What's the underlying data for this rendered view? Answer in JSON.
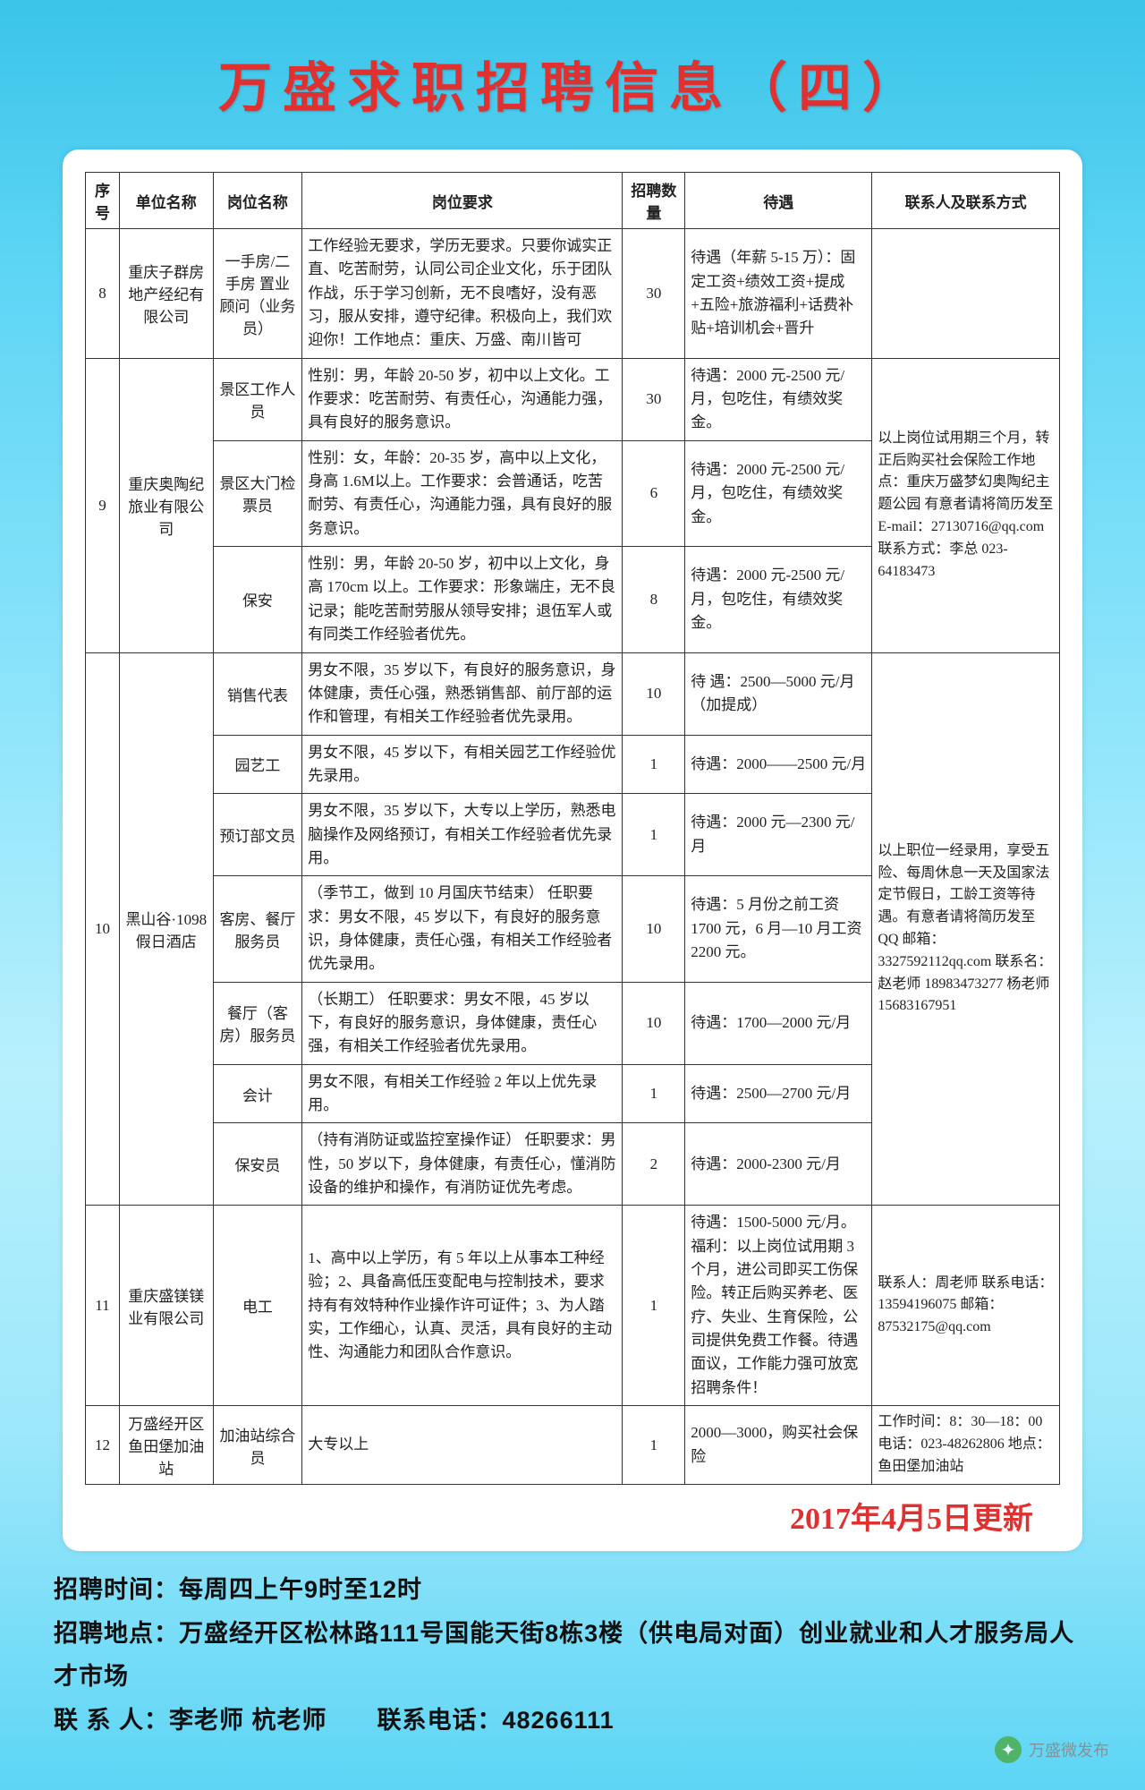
{
  "title": "万盛求职招聘信息（四）",
  "headers": {
    "idx": "序号",
    "company": "单位名称",
    "position": "岗位名称",
    "requirement": "岗位要求",
    "count": "招聘数量",
    "treatment": "待遇",
    "contact": "联系人及联系方式"
  },
  "rows": [
    {
      "idx": "8",
      "company": "重庆子群房地产经纪有限公司",
      "position": "一手房/二手房 置业顾问（业务员）",
      "requirement": "工作经验无要求，学历无要求。只要你诚实正直、吃苦耐劳，认同公司企业文化，乐于团队作战，乐于学习创新，无不良嗜好，没有恶习，服从安排，遵守纪律。积极向上，我们欢迎你！工作地点：重庆、万盛、南川皆可",
      "count": "30",
      "treatment": "待遇（年薪 5-15 万）：固定工资+绩效工资+提成+五险+旅游福利+话费补贴+培训机会+晋升",
      "contact": ""
    },
    {
      "idx": "9",
      "company": "重庆奥陶纪旅业有限公司",
      "subrows": [
        {
          "position": "景区工作人员",
          "requirement": "性别：男，年龄 20-50 岁，初中以上文化。工作要求：吃苦耐劳、有责任心，沟通能力强，具有良好的服务意识。",
          "count": "30",
          "treatment": "待遇：2000 元-2500 元/月，包吃住，有绩效奖金。"
        },
        {
          "position": "景区大门检票员",
          "requirement": "性别：女，年龄：20-35 岁，高中以上文化，身高 1.6M以上。工作要求：会普通话，吃苦耐劳、有责任心，沟通能力强，具有良好的服务意识。",
          "count": "6",
          "treatment": "待遇：2000 元-2500 元/月，包吃住，有绩效奖金。"
        },
        {
          "position": "保安",
          "requirement": "性别：男，年龄 20-50 岁，初中以上文化，身高 170cm 以上。工作要求：形象端庄，无不良记录；能吃苦耐劳服从领导安排；退伍军人或有同类工作经验者优先。",
          "count": "8",
          "treatment": "待遇：2000 元-2500 元/月，包吃住，有绩效奖金。"
        }
      ],
      "contact": "以上岗位试用期三个月，转正后购买社会保险工作地点：重庆万盛梦幻奥陶纪主题公园 有意者请将简历发至 E-mail：27130716@qq.com 联系方式：李总 023-64183473"
    },
    {
      "idx": "10",
      "company": "黑山谷·1098假日酒店",
      "subrows": [
        {
          "position": "销售代表",
          "requirement": "男女不限，35 岁以下，有良好的服务意识，身体健康，责任心强，熟悉销售部、前厅部的运作和管理，有相关工作经验者优先录用。",
          "count": "10",
          "treatment": "待 遇：2500—5000 元/月（加提成）"
        },
        {
          "position": "园艺工",
          "requirement": "男女不限，45 岁以下，有相关园艺工作经验优先录用。",
          "count": "1",
          "treatment": "待遇：2000——2500 元/月"
        },
        {
          "position": "预订部文员",
          "requirement": "男女不限，35 岁以下，大专以上学历，熟悉电脑操作及网络预订，有相关工作经验者优先录用。",
          "count": "1",
          "treatment": "待遇：2000 元—2300 元/月"
        },
        {
          "position": "客房、餐厅服务员",
          "requirement": "（季节工，做到 10 月国庆节结束） 任职要求：男女不限，45 岁以下，有良好的服务意识，身体健康，责任心强，有相关工作经验者优先录用。",
          "count": "10",
          "treatment": "待遇：5 月份之前工资 1700 元，6 月—10 月工资 2200 元。"
        },
        {
          "position": "餐厅（客房）服务员",
          "requirement": "（长期工） 任职要求：男女不限，45 岁以下，有良好的服务意识，身体健康，责任心强，有相关工作经验者优先录用。",
          "count": "10",
          "treatment": "待遇：1700—2000 元/月"
        },
        {
          "position": "会计",
          "requirement": "男女不限，有相关工作经验 2 年以上优先录用。",
          "count": "1",
          "treatment": "待遇：2500—2700 元/月"
        },
        {
          "position": "保安员",
          "requirement": "（持有消防证或监控室操作证） 任职要求：男性，50 岁以下，身体健康，有责任心，懂消防设备的维护和操作，有消防证优先考虑。",
          "count": "2",
          "treatment": "待遇：2000-2300 元/月"
        }
      ],
      "contact": "以上职位一经录用，享受五险、每周休息一天及国家法定节假日，工龄工资等待遇。有意者请将简历发至 QQ 邮箱：3327592112qq.com 联系名：赵老师 18983473277 杨老师 15683167951"
    },
    {
      "idx": "11",
      "company": "重庆盛镁镁业有限公司",
      "position": "电工",
      "requirement": "1、高中以上学历，有 5 年以上从事本工种经验；2、具备高低压变配电与控制技术，要求持有有效特种作业操作许可证件；3、为人踏实，工作细心，认真、灵活，具有良好的主动性、沟通能力和团队合作意识。",
      "count": "1",
      "treatment": "待遇：1500-5000 元/月。福利：以上岗位试用期 3 个月，进公司即买工伤保险。转正后购买养老、医疗、失业、生育保险，公司提供免费工作餐。待遇面议，工作能力强可放宽招聘条件！",
      "contact": "联系人：周老师 联系电话：13594196075 邮箱：87532175@qq.com"
    },
    {
      "idx": "12",
      "company": "万盛经开区鱼田堡加油站",
      "position": "加油站综合员",
      "requirement": "大专以上",
      "count": "1",
      "treatment": "2000—3000，购买社会保险",
      "contact": "工作时间：8：30—18：00 电话：023-48262806  地点：鱼田堡加油站"
    }
  ],
  "update": "2017年4月5日更新",
  "footer": {
    "time": "招聘时间：每周四上午9时至12时",
    "addr": "招聘地点：万盛经开区松林路111号国能天街8栋3楼（供电局对面）创业就业和人才服务局人才市场",
    "contact": "联 系 人：李老师 杭老师　　联系电话：48266111"
  },
  "watermark": "万盛微发布"
}
